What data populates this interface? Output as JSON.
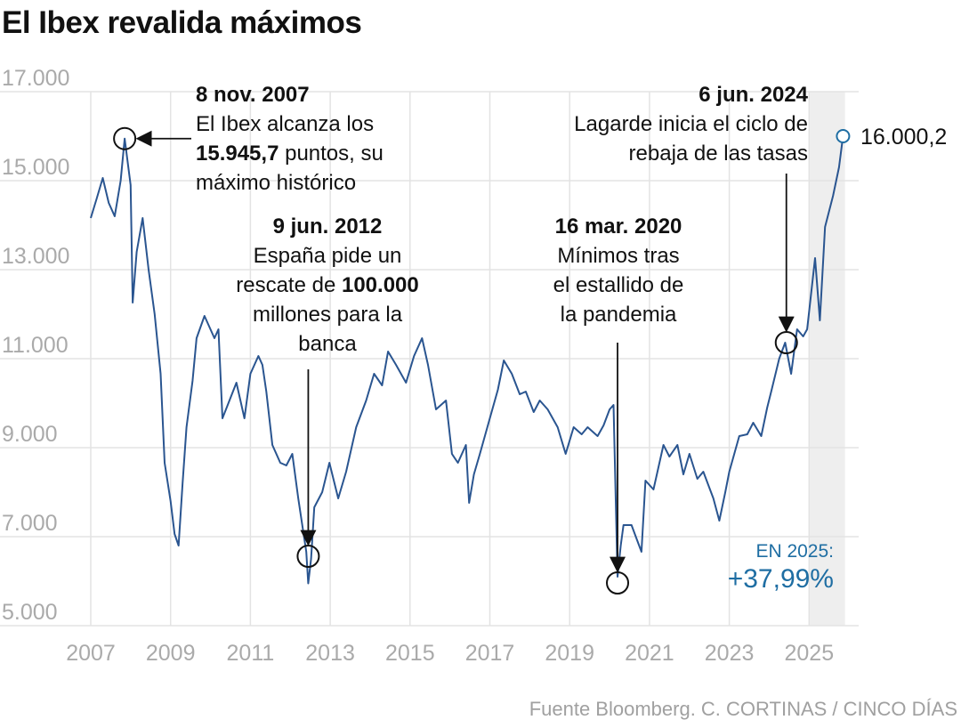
{
  "title": "El Ibex revalida máximos",
  "source": "Fuente Bloomberg. C. CORTINAS / CINCO DÍAS",
  "colors": {
    "line": "#2a5590",
    "accent": "#1f6ea3",
    "grid": "#e3e3e3",
    "highlight": "#eeeeee",
    "ticks": "#aaaaaa"
  },
  "chart_data": {
    "type": "line",
    "title": "El Ibex revalida máximos",
    "xlabel": "",
    "ylabel": "",
    "xlim": [
      2007,
      2026
    ],
    "ylim": [
      5000,
      17000
    ],
    "yticks": [
      5000,
      7000,
      9000,
      11000,
      13000,
      15000,
      17000
    ],
    "ytick_labels": [
      "5.000",
      "7.000",
      "9.000",
      "11.000",
      "13.000",
      "15.000",
      "17.000"
    ],
    "xticks": [
      2007,
      2009,
      2011,
      2013,
      2015,
      2017,
      2019,
      2021,
      2023,
      2025
    ],
    "xtick_labels": [
      "2007",
      "2009",
      "2011",
      "2013",
      "2015",
      "2017",
      "2019",
      "2021",
      "2023",
      "2025"
    ],
    "grid": true,
    "highlight_range": [
      2025,
      2025.9
    ],
    "series": [
      {
        "name": "Ibex 35",
        "points": [
          [
            2007.0,
            14160
          ],
          [
            2007.15,
            14600
          ],
          [
            2007.3,
            15060
          ],
          [
            2007.45,
            14500
          ],
          [
            2007.6,
            14200
          ],
          [
            2007.75,
            15000
          ],
          [
            2007.85,
            15945.7
          ],
          [
            2008.0,
            14900
          ],
          [
            2008.05,
            12260
          ],
          [
            2008.15,
            13400
          ],
          [
            2008.3,
            14160
          ],
          [
            2008.45,
            13000
          ],
          [
            2008.6,
            12000
          ],
          [
            2008.75,
            10660
          ],
          [
            2008.85,
            8660
          ],
          [
            2009.0,
            7800
          ],
          [
            2009.1,
            7060
          ],
          [
            2009.2,
            6800
          ],
          [
            2009.3,
            8200
          ],
          [
            2009.4,
            9460
          ],
          [
            2009.55,
            10500
          ],
          [
            2009.65,
            11460
          ],
          [
            2009.85,
            11960
          ],
          [
            2010.1,
            11460
          ],
          [
            2010.2,
            11660
          ],
          [
            2010.3,
            9660
          ],
          [
            2010.45,
            10000
          ],
          [
            2010.65,
            10460
          ],
          [
            2010.85,
            9660
          ],
          [
            2011.0,
            10660
          ],
          [
            2011.2,
            11060
          ],
          [
            2011.3,
            10860
          ],
          [
            2011.4,
            10260
          ],
          [
            2011.55,
            9060
          ],
          [
            2011.75,
            8660
          ],
          [
            2011.9,
            8600
          ],
          [
            2012.05,
            8860
          ],
          [
            2012.2,
            7860
          ],
          [
            2012.4,
            6660
          ],
          [
            2012.45,
            5950
          ],
          [
            2012.52,
            6500
          ],
          [
            2012.6,
            7660
          ],
          [
            2012.8,
            8000
          ],
          [
            2012.98,
            8660
          ],
          [
            2013.2,
            7860
          ],
          [
            2013.4,
            8460
          ],
          [
            2013.65,
            9460
          ],
          [
            2013.9,
            10060
          ],
          [
            2014.1,
            10660
          ],
          [
            2014.3,
            10400
          ],
          [
            2014.45,
            11160
          ],
          [
            2014.65,
            10860
          ],
          [
            2014.9,
            10460
          ],
          [
            2015.1,
            11060
          ],
          [
            2015.3,
            11460
          ],
          [
            2015.45,
            10860
          ],
          [
            2015.65,
            9860
          ],
          [
            2015.9,
            10060
          ],
          [
            2016.05,
            8860
          ],
          [
            2016.2,
            8660
          ],
          [
            2016.4,
            9060
          ],
          [
            2016.48,
            7760
          ],
          [
            2016.6,
            8400
          ],
          [
            2016.75,
            8860
          ],
          [
            2017.0,
            9660
          ],
          [
            2017.2,
            10300
          ],
          [
            2017.35,
            10960
          ],
          [
            2017.55,
            10660
          ],
          [
            2017.75,
            10200
          ],
          [
            2017.9,
            10260
          ],
          [
            2018.1,
            9800
          ],
          [
            2018.25,
            10060
          ],
          [
            2018.45,
            9860
          ],
          [
            2018.7,
            9460
          ],
          [
            2018.9,
            8860
          ],
          [
            2019.1,
            9460
          ],
          [
            2019.3,
            9300
          ],
          [
            2019.45,
            9460
          ],
          [
            2019.7,
            9260
          ],
          [
            2019.85,
            9500
          ],
          [
            2020.0,
            9860
          ],
          [
            2020.1,
            9960
          ],
          [
            2020.2,
            6100
          ],
          [
            2020.28,
            6800
          ],
          [
            2020.35,
            7260
          ],
          [
            2020.55,
            7260
          ],
          [
            2020.7,
            6900
          ],
          [
            2020.8,
            6660
          ],
          [
            2020.9,
            8260
          ],
          [
            2021.1,
            8060
          ],
          [
            2021.35,
            9060
          ],
          [
            2021.5,
            8800
          ],
          [
            2021.7,
            9060
          ],
          [
            2021.85,
            8400
          ],
          [
            2022.0,
            8860
          ],
          [
            2022.2,
            8300
          ],
          [
            2022.35,
            8460
          ],
          [
            2022.6,
            7860
          ],
          [
            2022.75,
            7360
          ],
          [
            2022.9,
            8000
          ],
          [
            2023.0,
            8460
          ],
          [
            2023.25,
            9260
          ],
          [
            2023.45,
            9300
          ],
          [
            2023.6,
            9560
          ],
          [
            2023.8,
            9260
          ],
          [
            2023.95,
            9900
          ],
          [
            2024.05,
            10260
          ],
          [
            2024.25,
            11000
          ],
          [
            2024.4,
            11360
          ],
          [
            2024.55,
            10660
          ],
          [
            2024.7,
            11660
          ],
          [
            2024.85,
            11500
          ],
          [
            2024.95,
            11660
          ],
          [
            2025.15,
            13260
          ],
          [
            2025.27,
            11860
          ],
          [
            2025.4,
            13960
          ],
          [
            2025.6,
            14660
          ],
          [
            2025.75,
            15300
          ],
          [
            2025.85,
            16000.2
          ]
        ]
      }
    ],
    "end_point": {
      "year": 2025.85,
      "value": 16000.2,
      "label": "16.000,2"
    },
    "annotations": [
      {
        "year": 2007.85,
        "value": 15945.7,
        "date": "8 nov. 2007",
        "lines": [
          "El Ibex alcanza los",
          "puntos, su",
          "máximo histórico"
        ],
        "bold": "15.945,7"
      },
      {
        "year": 2012.45,
        "value": 6560,
        "date": "9 jun. 2012",
        "lines": [
          "España pide un",
          "rescate de",
          "millones para la",
          "banca"
        ],
        "bold": "100.000"
      },
      {
        "year": 2020.2,
        "value": 5960,
        "date": "16 mar. 2020",
        "lines": [
          "Mínimos tras",
          "el estallido de",
          "la pandemia"
        ]
      },
      {
        "year": 2024.43,
        "value": 11360,
        "date": "6 jun. 2024",
        "lines": [
          "Lagarde inicia el ciclo de",
          "rebaja de las tasas"
        ]
      }
    ],
    "ytd": {
      "label": "EN 2025:",
      "value": "+37,99%"
    }
  }
}
